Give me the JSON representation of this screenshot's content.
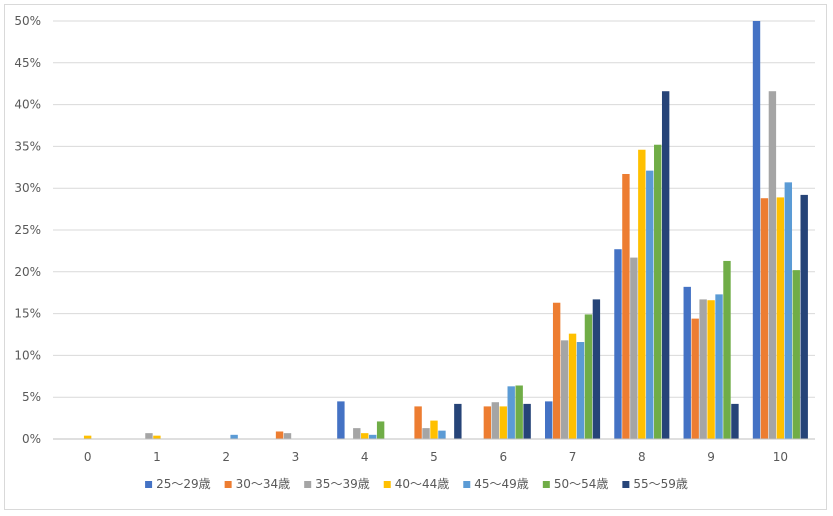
{
  "chart_data": {
    "type": "bar",
    "title": "",
    "xlabel": "",
    "ylabel": "",
    "ylim": [
      0,
      50
    ],
    "y_tick_values": [
      0,
      5,
      10,
      15,
      20,
      25,
      30,
      35,
      40,
      45,
      50
    ],
    "y_tick_labels": [
      "0%",
      "5%",
      "10%",
      "15%",
      "20%",
      "25%",
      "30%",
      "35%",
      "40%",
      "45%",
      "50%"
    ],
    "categories": [
      "0",
      "1",
      "2",
      "3",
      "4",
      "5",
      "6",
      "7",
      "8",
      "9",
      "10"
    ],
    "grid": true,
    "legend_position": "bottom",
    "series": [
      {
        "name": "25〜29歳",
        "color": "#4472C4",
        "values": [
          0,
          0,
          0,
          0,
          4.5,
          0,
          0,
          4.5,
          22.7,
          18.2,
          50.0
        ]
      },
      {
        "name": "30〜34歳",
        "color": "#ED7D31",
        "values": [
          0,
          0,
          0,
          0.9,
          0,
          3.9,
          3.9,
          16.3,
          31.7,
          14.4,
          28.8
        ]
      },
      {
        "name": "35〜39歳",
        "color": "#A5A5A5",
        "values": [
          0,
          0.7,
          0,
          0.7,
          1.3,
          1.3,
          4.4,
          11.8,
          21.7,
          16.7,
          41.6
        ]
      },
      {
        "name": "40〜44歳",
        "color": "#FFC000",
        "values": [
          0.4,
          0.4,
          0,
          0,
          0.7,
          2.2,
          3.9,
          12.6,
          34.6,
          16.6,
          28.9
        ]
      },
      {
        "name": "45〜49歳",
        "color": "#5B9BD5",
        "values": [
          0,
          0,
          0.5,
          0,
          0.5,
          1.0,
          6.3,
          11.6,
          32.1,
          17.3,
          30.7
        ]
      },
      {
        "name": "50〜54歳",
        "color": "#70AD47",
        "values": [
          0,
          0,
          0,
          0,
          2.1,
          0,
          6.4,
          14.9,
          35.2,
          21.3,
          20.2
        ]
      },
      {
        "name": "55〜59歳",
        "color": "#264478",
        "values": [
          0,
          0,
          0,
          0,
          0,
          4.2,
          4.2,
          16.7,
          41.6,
          4.2,
          29.2
        ]
      }
    ]
  }
}
